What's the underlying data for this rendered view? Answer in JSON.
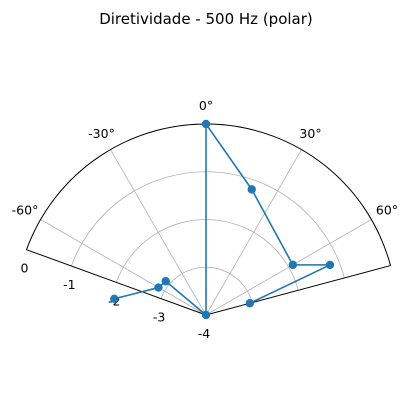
{
  "chart_data": {
    "type": "scatter",
    "projection": "polar",
    "title": "Diretividade - 500 Hz (polar)",
    "theta_unit": "degrees",
    "theta_range": [
      -90,
      90
    ],
    "theta_zero_location": "top",
    "theta_ticks": [
      -60,
      -30,
      0,
      30,
      60
    ],
    "theta_tick_labels": [
      "-60°",
      "-30°",
      "0°",
      "30°",
      "60°"
    ],
    "r_range": [
      -4,
      0
    ],
    "r_ticks": [
      -4,
      -3,
      -2,
      -1,
      0
    ],
    "r_tick_labels": [
      "-4",
      "-3",
      "-2",
      "-1",
      "0"
    ],
    "grid": true,
    "series": [
      {
        "color": "#1f77b4",
        "marker": "circle",
        "points": [
          {
            "theta": -80,
            "r": -2.05
          },
          {
            "theta": -60,
            "r": -2.85
          },
          {
            "theta": -50,
            "r": -2.9
          },
          {
            "theta": -90,
            "r": -4.0
          },
          {
            "theta": 0,
            "r": 0.0
          },
          {
            "theta": 20,
            "r": -1.2
          },
          {
            "theta": 60,
            "r": -1.9
          },
          {
            "theta": 68,
            "r": -1.2
          },
          {
            "theta": 75,
            "r": -3.05
          }
        ]
      }
    ]
  }
}
